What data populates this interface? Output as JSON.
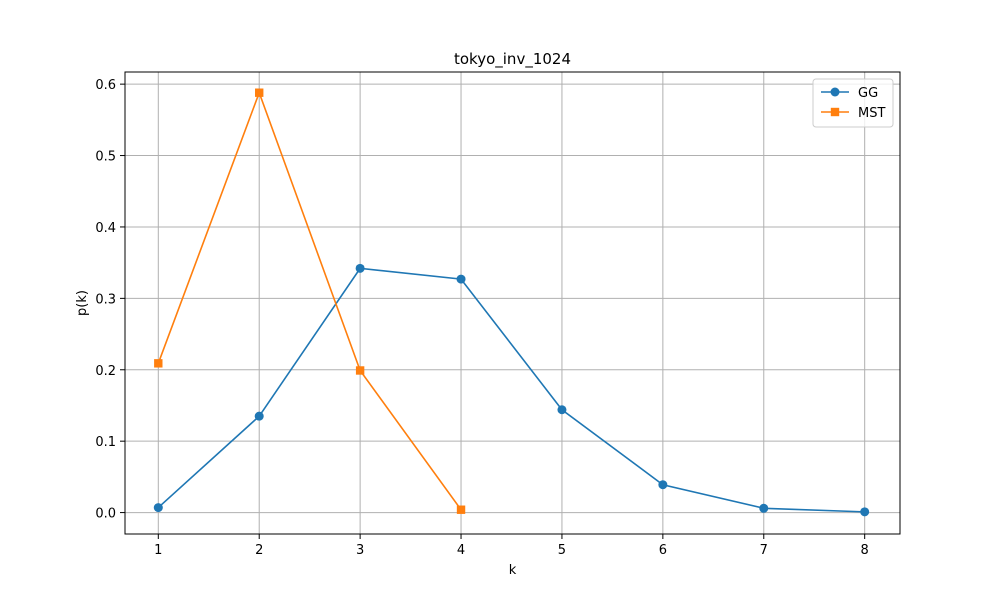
{
  "chart_data": {
    "type": "line",
    "title": "tokyo_inv_1024",
    "xlabel": "k",
    "ylabel": "p(k)",
    "xlim": [
      0.67,
      8.35
    ],
    "ylim": [
      -0.03,
      0.617
    ],
    "xticks": [
      1,
      2,
      3,
      4,
      5,
      6,
      7,
      8
    ],
    "yticks": [
      0.0,
      0.1,
      0.2,
      0.3,
      0.4,
      0.5,
      0.6
    ],
    "ytick_labels": [
      "0.0",
      "0.1",
      "0.2",
      "0.3",
      "0.4",
      "0.5",
      "0.6"
    ],
    "grid": true,
    "legend_position": "top-right",
    "series": [
      {
        "name": "GG",
        "color": "#1f77b4",
        "marker": "circle",
        "x": [
          1,
          2,
          3,
          4,
          5,
          6,
          7,
          8
        ],
        "y": [
          0.007,
          0.135,
          0.342,
          0.327,
          0.144,
          0.039,
          0.006,
          0.001
        ]
      },
      {
        "name": "MST",
        "color": "#ff7f0e",
        "marker": "square",
        "x": [
          1,
          2,
          3,
          4
        ],
        "y": [
          0.209,
          0.588,
          0.199,
          0.004
        ]
      }
    ]
  }
}
